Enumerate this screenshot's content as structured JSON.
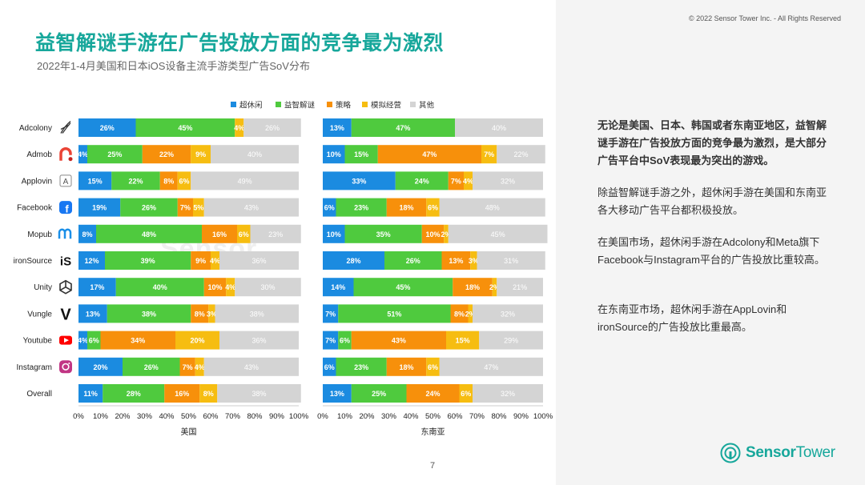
{
  "copyright": "© 2022 Sensor Tower Inc. - All Rights Reserved",
  "title": "益智解谜手游在广告投放方面的竞争最为激烈",
  "subtitle": "2022年1-4月美国和日本iOS设备主流手游类型广告SoV分布",
  "page_number": "7",
  "watermark": "Sensor",
  "brand": {
    "name_part1": "Sensor",
    "name_part2": "Tower"
  },
  "paragraphs": [
    "无论是美国、日本、韩国或者东南亚地区，益智解谜手游在广告投放方面的竞争最为激烈，是大部分广告平台中SoV表现最为突出的游戏。",
    "除益智解谜手游之外，超休闲手游在美国和东南亚各大移动广告平台都积极投放。",
    "在美国市场，超休闲手游在Adcolony和Meta旗下Facebook与Instagram平台的广告投放比重较高。",
    "在东南亚市场，超休闲手游在AppLovin和ironSource的广告投放比重最高。"
  ],
  "colors": {
    "accent": "#17a79b",
    "series": [
      "#1b8be0",
      "#4fca3e",
      "#f7900b",
      "#f6bd11",
      "#d4d4d4"
    ]
  },
  "chart_data": {
    "type": "bar",
    "orientation": "horizontal-stacked-100",
    "categories": [
      "Adcolony",
      "Admob",
      "Applovin",
      "Facebook",
      "Mopub",
      "ironSource",
      "Unity",
      "Vungle",
      "Youtube",
      "Instagram",
      "Overall"
    ],
    "category_icons": [
      "adcolony-icon",
      "admob-icon",
      "applovin-icon",
      "facebook-icon",
      "mopub-icon",
      "ironsource-icon",
      "unity-icon",
      "vungle-icon",
      "youtube-icon",
      "instagram-icon",
      ""
    ],
    "legend": [
      "超休闲",
      "益智解谜",
      "策略",
      "模拟经营",
      "其他"
    ],
    "x_ticks": [
      "0%",
      "10%",
      "20%",
      "30%",
      "40%",
      "50%",
      "60%",
      "70%",
      "80%",
      "90%",
      "100%"
    ],
    "xlim": [
      0,
      100
    ],
    "panels": [
      {
        "xlabel": "美国",
        "series": [
          {
            "name": "超休闲",
            "values": [
              26,
              4,
              15,
              19,
              8,
              12,
              17,
              13,
              4,
              20,
              11
            ]
          },
          {
            "name": "益智解谜",
            "values": [
              45,
              25,
              22,
              26,
              48,
              39,
              40,
              38,
              6,
              26,
              28
            ]
          },
          {
            "name": "策略",
            "values": [
              0,
              22,
              8,
              7,
              16,
              9,
              10,
              8,
              34,
              7,
              16
            ]
          },
          {
            "name": "模拟经营",
            "values": [
              4,
              9,
              6,
              5,
              6,
              4,
              4,
              3,
              20,
              4,
              8
            ]
          },
          {
            "name": "其他",
            "values": [
              26,
              40,
              49,
              43,
              23,
              36,
              30,
              38,
              36,
              43,
              38
            ]
          }
        ]
      },
      {
        "xlabel": "东南亚",
        "series": [
          {
            "name": "超休闲",
            "values": [
              13,
              10,
              33,
              6,
              10,
              28,
              14,
              7,
              7,
              6,
              13
            ]
          },
          {
            "name": "益智解谜",
            "values": [
              47,
              15,
              24,
              23,
              35,
              26,
              45,
              51,
              6,
              23,
              25
            ]
          },
          {
            "name": "策略",
            "values": [
              0,
              47,
              7,
              18,
              10,
              13,
              18,
              8,
              43,
              18,
              24
            ]
          },
          {
            "name": "模拟经营",
            "values": [
              0,
              7,
              4,
              6,
              2,
              3,
              2,
              2,
              15,
              6,
              6
            ]
          },
          {
            "name": "其他",
            "values": [
              40,
              22,
              32,
              48,
              45,
              31,
              21,
              32,
              29,
              47,
              32
            ]
          }
        ]
      }
    ]
  }
}
